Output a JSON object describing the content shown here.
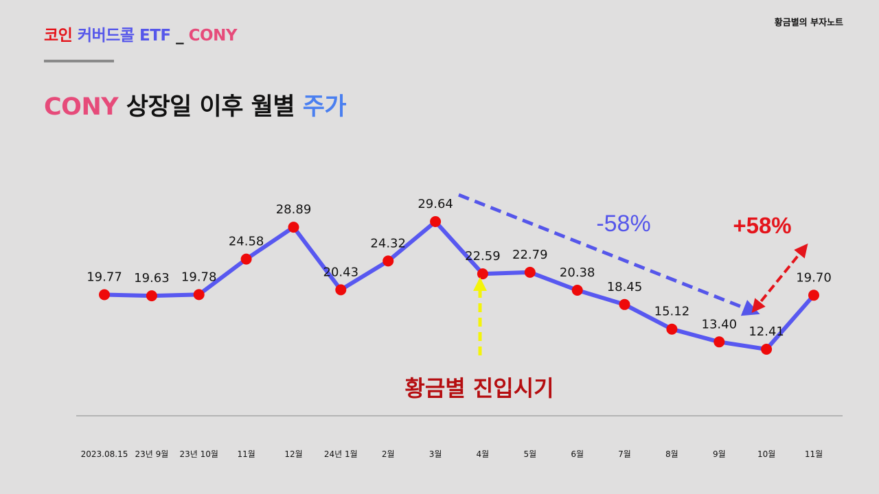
{
  "colors": {
    "pink": "#e64b7a",
    "red": "#e4141b",
    "blue": "#5556ea",
    "blue_title": "#4a7ff0",
    "dark_red": "#b50d10",
    "yellow": "#f4f40a",
    "line": "#5858f0",
    "marker": "#ee0a0a",
    "text": "#111111"
  },
  "header": {
    "coin": "코인",
    "etf_type": "커버드콜 ETF",
    "separator": "_",
    "ticker": "CONY"
  },
  "brand": "황금별의 부자노트",
  "title": {
    "ticker": "CONY",
    "middle": "상장일 이후 월별",
    "price": "주가"
  },
  "chart_data": {
    "type": "line",
    "title": "CONY 상장일 이후 월별 주가",
    "categories": [
      "2023.08.15",
      "23년 9월",
      "23년 10월",
      "11월",
      "12월",
      "24년 1월",
      "2월",
      "3월",
      "4월",
      "5월",
      "6월",
      "7월",
      "8월",
      "9월",
      "10월",
      "11월"
    ],
    "values": [
      19.77,
      19.63,
      19.78,
      24.58,
      28.89,
      20.43,
      24.32,
      29.64,
      22.59,
      22.79,
      20.38,
      18.45,
      15.12,
      13.4,
      12.41,
      19.7
    ],
    "value_labels": [
      "19.77",
      "19.63",
      "19.78",
      "24.58",
      "28.89",
      "20.43",
      "24.32",
      "29.64",
      "22.59",
      "22.79",
      "20.38",
      "18.45",
      "15.12",
      "13.40",
      "12.41",
      "19.70"
    ],
    "ylim": [
      5,
      38
    ],
    "annotations": {
      "decline": "-58%",
      "rebound": "+58%",
      "entry": "황금별 진입시기"
    }
  }
}
